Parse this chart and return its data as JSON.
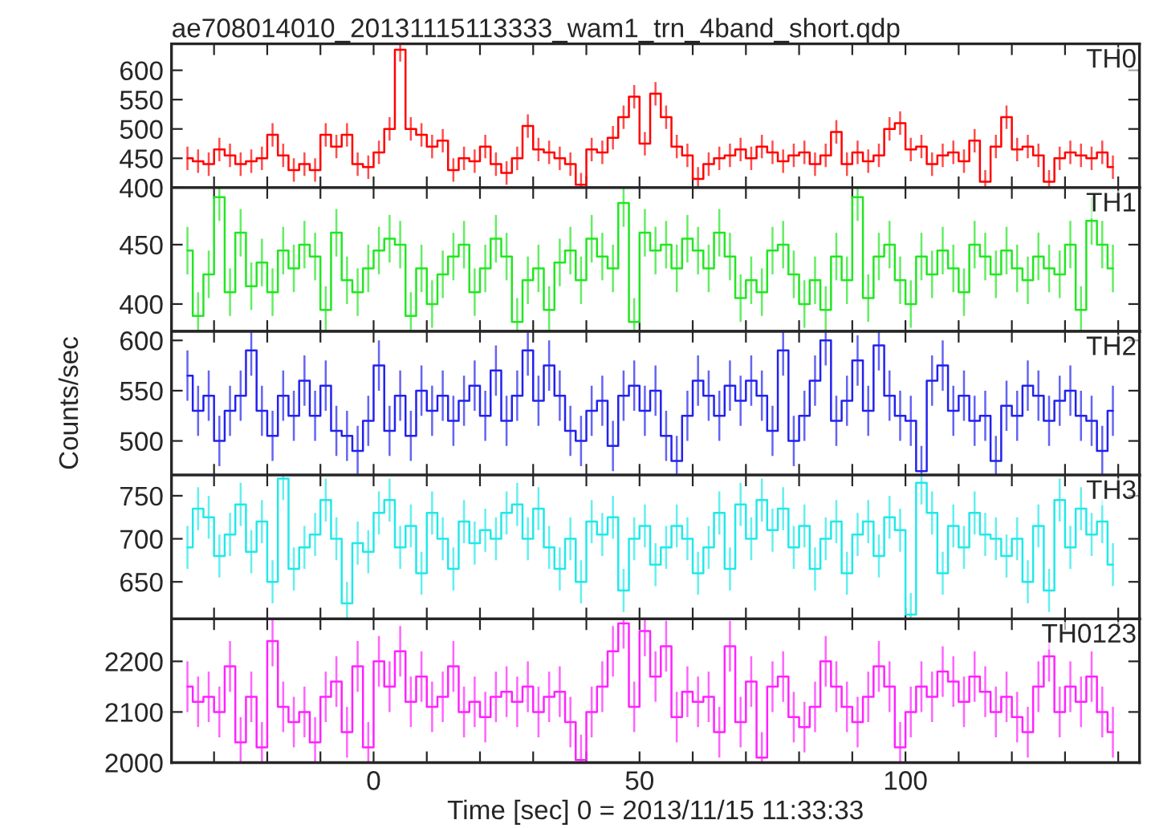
{
  "chart_data": [
    {
      "type": "step",
      "title": "ae708014010_20131115113333_wam1_trn_4band_short.qdp",
      "annotations": [
        "TH0"
      ],
      "tick_labels": "y",
      "color": "#ff0000",
      "x": [
        -35,
        -33,
        -31,
        -29,
        -27,
        -25,
        -23,
        -21,
        -19,
        -17,
        -15,
        -13,
        -11,
        -9,
        -7,
        -5,
        -3,
        -1,
        1,
        3,
        5,
        7,
        9,
        11,
        13,
        15,
        17,
        19,
        21,
        23,
        25,
        27,
        29,
        31,
        33,
        35,
        37,
        39,
        41,
        43,
        45,
        47,
        49,
        51,
        53,
        55,
        57,
        59,
        61,
        63,
        65,
        67,
        69,
        71,
        73,
        75,
        77,
        79,
        81,
        83,
        85,
        87,
        89,
        91,
        93,
        95,
        97,
        99,
        101,
        103,
        105,
        107,
        109,
        111,
        113,
        115,
        117,
        119,
        121,
        123,
        125,
        127,
        129,
        131,
        133,
        135,
        137,
        139
      ],
      "values": [
        450,
        445,
        440,
        465,
        455,
        440,
        445,
        450,
        490,
        455,
        430,
        440,
        430,
        490,
        470,
        490,
        440,
        435,
        460,
        500,
        635,
        500,
        490,
        470,
        480,
        430,
        450,
        445,
        470,
        440,
        425,
        450,
        505,
        465,
        460,
        450,
        440,
        405,
        465,
        460,
        485,
        520,
        555,
        475,
        560,
        520,
        470,
        455,
        415,
        440,
        450,
        455,
        465,
        450,
        470,
        460,
        445,
        455,
        460,
        440,
        455,
        495,
        440,
        460,
        445,
        455,
        500,
        510,
        465,
        470,
        440,
        455,
        460,
        445,
        480,
        410,
        470,
        520,
        465,
        470,
        455,
        410,
        450,
        460,
        455,
        450,
        460,
        435
      ],
      "errors": [
        20,
        20,
        20,
        20,
        20,
        20,
        20,
        20,
        20,
        20,
        20,
        20,
        20,
        20,
        20,
        20,
        20,
        20,
        20,
        20,
        20,
        20,
        20,
        20,
        20,
        20,
        20,
        20,
        20,
        20,
        20,
        20,
        20,
        20,
        20,
        20,
        20,
        20,
        20,
        20,
        20,
        20,
        20,
        20,
        20,
        20,
        20,
        20,
        20,
        20,
        20,
        20,
        20,
        20,
        20,
        20,
        20,
        20,
        20,
        20,
        20,
        20,
        20,
        20,
        20,
        20,
        20,
        20,
        20,
        20,
        20,
        20,
        20,
        20,
        20,
        20,
        20,
        20,
        20,
        20,
        20,
        20,
        20,
        20,
        20,
        20,
        20,
        20
      ],
      "xlim": [
        -38,
        144
      ],
      "ylim": [
        400,
        645
      ],
      "yticks": [
        400,
        450,
        500,
        550,
        600
      ],
      "xticks": [
        {
          "value": -30,
          "label": null
        },
        {
          "value": -20,
          "label": null
        },
        {
          "value": -10,
          "label": null
        },
        {
          "value": 0,
          "label": null
        },
        {
          "value": 10,
          "label": null
        },
        {
          "value": 20,
          "label": null
        },
        {
          "value": 30,
          "label": null
        },
        {
          "value": 40,
          "label": null
        },
        {
          "value": 50,
          "label": null
        },
        {
          "value": 60,
          "label": null
        },
        {
          "value": 70,
          "label": null
        },
        {
          "value": 80,
          "label": null
        },
        {
          "value": 90,
          "label": null
        },
        {
          "value": 100,
          "label": null
        },
        {
          "value": 110,
          "label": null
        },
        {
          "value": 120,
          "label": null
        },
        {
          "value": 130,
          "label": null
        },
        {
          "value": 140,
          "label": null
        }
      ]
    },
    {
      "type": "step",
      "annotations": [
        "TH1"
      ],
      "tick_labels": "y",
      "color": "#22e622",
      "x": [
        -35,
        -33,
        -31,
        -29,
        -27,
        -25,
        -23,
        -21,
        -19,
        -17,
        -15,
        -13,
        -11,
        -9,
        -7,
        -5,
        -3,
        -1,
        1,
        3,
        5,
        7,
        9,
        11,
        13,
        15,
        17,
        19,
        21,
        23,
        25,
        27,
        29,
        31,
        33,
        35,
        37,
        39,
        41,
        43,
        45,
        47,
        49,
        51,
        53,
        55,
        57,
        59,
        61,
        63,
        65,
        67,
        69,
        71,
        73,
        75,
        77,
        79,
        81,
        83,
        85,
        87,
        89,
        91,
        93,
        95,
        97,
        99,
        101,
        103,
        105,
        107,
        109,
        111,
        113,
        115,
        117,
        119,
        121,
        123,
        125,
        127,
        129,
        131,
        133,
        135,
        137,
        139
      ],
      "values": [
        445,
        390,
        425,
        490,
        410,
        460,
        415,
        435,
        410,
        445,
        430,
        450,
        440,
        395,
        460,
        420,
        410,
        430,
        445,
        455,
        450,
        390,
        430,
        400,
        425,
        440,
        450,
        410,
        430,
        455,
        440,
        385,
        420,
        430,
        395,
        435,
        445,
        420,
        455,
        440,
        430,
        485,
        385,
        460,
        445,
        450,
        430,
        455,
        445,
        430,
        460,
        440,
        405,
        420,
        410,
        445,
        450,
        425,
        400,
        420,
        395,
        440,
        420,
        490,
        405,
        440,
        450,
        420,
        400,
        440,
        425,
        445,
        430,
        410,
        450,
        440,
        425,
        445,
        430,
        420,
        440,
        430,
        425,
        450,
        395,
        470,
        450,
        430
      ],
      "errors": [
        20,
        20,
        20,
        20,
        20,
        20,
        20,
        20,
        20,
        20,
        20,
        20,
        20,
        20,
        20,
        20,
        20,
        20,
        20,
        20,
        20,
        20,
        20,
        20,
        20,
        20,
        20,
        20,
        20,
        20,
        20,
        20,
        20,
        20,
        20,
        20,
        20,
        20,
        20,
        20,
        20,
        20,
        20,
        20,
        20,
        20,
        20,
        20,
        20,
        20,
        20,
        20,
        20,
        20,
        20,
        20,
        20,
        20,
        20,
        20,
        20,
        20,
        20,
        20,
        20,
        20,
        20,
        20,
        20,
        20,
        20,
        20,
        20,
        20,
        20,
        20,
        20,
        20,
        20,
        20,
        20,
        20,
        20,
        20,
        20,
        20,
        20,
        20
      ],
      "xlim": [
        -38,
        144
      ],
      "ylim": [
        377,
        498
      ],
      "yticks": [
        400,
        450
      ],
      "xticks": [
        {
          "value": -30,
          "label": null
        },
        {
          "value": -20,
          "label": null
        },
        {
          "value": -10,
          "label": null
        },
        {
          "value": 0,
          "label": null
        },
        {
          "value": 10,
          "label": null
        },
        {
          "value": 20,
          "label": null
        },
        {
          "value": 30,
          "label": null
        },
        {
          "value": 40,
          "label": null
        },
        {
          "value": 50,
          "label": null
        },
        {
          "value": 60,
          "label": null
        },
        {
          "value": 70,
          "label": null
        },
        {
          "value": 80,
          "label": null
        },
        {
          "value": 90,
          "label": null
        },
        {
          "value": 100,
          "label": null
        },
        {
          "value": 110,
          "label": null
        },
        {
          "value": 120,
          "label": null
        },
        {
          "value": 130,
          "label": null
        },
        {
          "value": 140,
          "label": null
        }
      ]
    },
    {
      "type": "step",
      "annotations": [
        "TH2"
      ],
      "ylabel": "Counts/sec",
      "tick_labels": "y",
      "color": "#2222ee",
      "x": [
        -35,
        -33,
        -31,
        -29,
        -27,
        -25,
        -23,
        -21,
        -19,
        -17,
        -15,
        -13,
        -11,
        -9,
        -7,
        -5,
        -3,
        -1,
        1,
        3,
        5,
        7,
        9,
        11,
        13,
        15,
        17,
        19,
        21,
        23,
        25,
        27,
        29,
        31,
        33,
        35,
        37,
        39,
        41,
        43,
        45,
        47,
        49,
        51,
        53,
        55,
        57,
        59,
        61,
        63,
        65,
        67,
        69,
        71,
        73,
        75,
        77,
        79,
        81,
        83,
        85,
        87,
        89,
        91,
        93,
        95,
        97,
        99,
        101,
        103,
        105,
        107,
        109,
        111,
        113,
        115,
        117,
        119,
        121,
        123,
        125,
        127,
        129,
        131,
        133,
        135,
        137,
        139
      ],
      "values": [
        565,
        530,
        545,
        500,
        530,
        545,
        590,
        530,
        505,
        545,
        525,
        560,
        525,
        555,
        510,
        505,
        490,
        520,
        575,
        510,
        545,
        505,
        550,
        530,
        545,
        520,
        540,
        555,
        525,
        570,
        520,
        545,
        590,
        540,
        575,
        545,
        510,
        500,
        530,
        540,
        495,
        545,
        555,
        530,
        550,
        505,
        480,
        525,
        560,
        545,
        525,
        555,
        540,
        560,
        545,
        510,
        590,
        500,
        525,
        560,
        600,
        520,
        540,
        580,
        530,
        595,
        545,
        525,
        520,
        470,
        560,
        575,
        530,
        545,
        520,
        525,
        480,
        535,
        525,
        555,
        545,
        520,
        540,
        550,
        525,
        520,
        490,
        530
      ],
      "errors": [
        25,
        25,
        25,
        25,
        25,
        25,
        25,
        25,
        25,
        25,
        25,
        25,
        25,
        25,
        25,
        25,
        25,
        25,
        25,
        25,
        25,
        25,
        25,
        25,
        25,
        25,
        25,
        25,
        25,
        25,
        25,
        25,
        25,
        25,
        25,
        25,
        25,
        25,
        25,
        25,
        25,
        25,
        25,
        25,
        25,
        25,
        25,
        25,
        25,
        25,
        25,
        25,
        25,
        25,
        25,
        25,
        25,
        25,
        25,
        25,
        25,
        25,
        25,
        25,
        25,
        25,
        25,
        25,
        25,
        25,
        25,
        25,
        25,
        25,
        25,
        25,
        25,
        25,
        25,
        25,
        25,
        25,
        25,
        25,
        25,
        25,
        25,
        25
      ],
      "xlim": [
        -38,
        144
      ],
      "ylim": [
        466,
        609
      ],
      "yticks": [
        500,
        550,
        600
      ],
      "xticks": [
        {
          "value": -30,
          "label": null
        },
        {
          "value": -20,
          "label": null
        },
        {
          "value": -10,
          "label": null
        },
        {
          "value": 0,
          "label": null
        },
        {
          "value": 10,
          "label": null
        },
        {
          "value": 20,
          "label": null
        },
        {
          "value": 30,
          "label": null
        },
        {
          "value": 40,
          "label": null
        },
        {
          "value": 50,
          "label": null
        },
        {
          "value": 60,
          "label": null
        },
        {
          "value": 70,
          "label": null
        },
        {
          "value": 80,
          "label": null
        },
        {
          "value": 90,
          "label": null
        },
        {
          "value": 100,
          "label": null
        },
        {
          "value": 110,
          "label": null
        },
        {
          "value": 120,
          "label": null
        },
        {
          "value": 130,
          "label": null
        },
        {
          "value": 140,
          "label": null
        }
      ]
    },
    {
      "type": "step",
      "annotations": [
        "TH3"
      ],
      "tick_labels": "y",
      "color": "#22e8e8",
      "x": [
        -35,
        -33,
        -31,
        -29,
        -27,
        -25,
        -23,
        -21,
        -19,
        -17,
        -15,
        -13,
        -11,
        -9,
        -7,
        -5,
        -3,
        -1,
        1,
        3,
        5,
        7,
        9,
        11,
        13,
        15,
        17,
        19,
        21,
        23,
        25,
        27,
        29,
        31,
        33,
        35,
        37,
        39,
        41,
        43,
        45,
        47,
        49,
        51,
        53,
        55,
        57,
        59,
        61,
        63,
        65,
        67,
        69,
        71,
        73,
        75,
        77,
        79,
        81,
        83,
        85,
        87,
        89,
        91,
        93,
        95,
        97,
        99,
        101,
        103,
        105,
        107,
        109,
        111,
        113,
        115,
        117,
        119,
        121,
        123,
        125,
        127,
        129,
        131,
        133,
        135,
        137,
        139
      ],
      "values": [
        690,
        735,
        725,
        680,
        705,
        740,
        685,
        720,
        650,
        770,
        665,
        690,
        705,
        745,
        700,
        625,
        695,
        685,
        730,
        745,
        690,
        715,
        660,
        730,
        700,
        665,
        720,
        695,
        710,
        700,
        730,
        740,
        700,
        735,
        690,
        665,
        700,
        650,
        720,
        705,
        725,
        640,
        700,
        715,
        670,
        690,
        715,
        700,
        660,
        690,
        730,
        665,
        740,
        700,
        745,
        710,
        735,
        690,
        715,
        665,
        700,
        720,
        660,
        705,
        720,
        680,
        725,
        710,
        612,
        765,
        730,
        660,
        715,
        690,
        730,
        705,
        700,
        680,
        700,
        650,
        715,
        640,
        745,
        690,
        735,
        705,
        720,
        670
      ],
      "errors": [
        25,
        25,
        25,
        25,
        25,
        25,
        25,
        25,
        25,
        25,
        25,
        25,
        25,
        25,
        25,
        25,
        25,
        25,
        25,
        25,
        25,
        25,
        25,
        25,
        25,
        25,
        25,
        25,
        25,
        25,
        25,
        25,
        25,
        25,
        25,
        25,
        25,
        25,
        25,
        25,
        25,
        25,
        25,
        25,
        25,
        25,
        25,
        25,
        25,
        25,
        25,
        25,
        25,
        25,
        25,
        25,
        25,
        25,
        25,
        25,
        25,
        25,
        25,
        25,
        25,
        25,
        25,
        25,
        25,
        25,
        25,
        25,
        25,
        25,
        25,
        25,
        25,
        25,
        25,
        25,
        25,
        25,
        25,
        25,
        25,
        25,
        25,
        25
      ],
      "xlim": [
        -38,
        144
      ],
      "ylim": [
        607,
        774
      ],
      "yticks": [
        650,
        700,
        750
      ],
      "xticks": [
        {
          "value": -30,
          "label": null
        },
        {
          "value": -20,
          "label": null
        },
        {
          "value": -10,
          "label": null
        },
        {
          "value": 0,
          "label": null
        },
        {
          "value": 10,
          "label": null
        },
        {
          "value": 20,
          "label": null
        },
        {
          "value": 30,
          "label": null
        },
        {
          "value": 40,
          "label": null
        },
        {
          "value": 50,
          "label": null
        },
        {
          "value": 60,
          "label": null
        },
        {
          "value": 70,
          "label": null
        },
        {
          "value": 80,
          "label": null
        },
        {
          "value": 90,
          "label": null
        },
        {
          "value": 100,
          "label": null
        },
        {
          "value": 110,
          "label": null
        },
        {
          "value": 120,
          "label": null
        },
        {
          "value": 130,
          "label": null
        },
        {
          "value": 140,
          "label": null
        }
      ]
    },
    {
      "type": "step",
      "annotations": [
        "TH0123"
      ],
      "xlabel": "Time [sec] 0 = 2013/11/15 11:33:33",
      "color": "#ff22ff",
      "x": [
        -35,
        -33,
        -31,
        -29,
        -27,
        -25,
        -23,
        -21,
        -19,
        -17,
        -15,
        -13,
        -11,
        -9,
        -7,
        -5,
        -3,
        -1,
        1,
        3,
        5,
        7,
        9,
        11,
        13,
        15,
        17,
        19,
        21,
        23,
        25,
        27,
        29,
        31,
        33,
        35,
        37,
        39,
        41,
        43,
        45,
        47,
        49,
        51,
        53,
        55,
        57,
        59,
        61,
        63,
        65,
        67,
        69,
        71,
        73,
        75,
        77,
        79,
        81,
        83,
        85,
        87,
        89,
        91,
        93,
        95,
        97,
        99,
        101,
        103,
        105,
        107,
        109,
        111,
        113,
        115,
        117,
        119,
        121,
        123,
        125,
        127,
        129,
        131,
        133,
        135,
        137,
        139
      ],
      "values": [
        2150,
        2120,
        2130,
        2100,
        2190,
        2040,
        2130,
        2030,
        2240,
        2110,
        2080,
        2100,
        2040,
        2130,
        2160,
        2060,
        2190,
        2030,
        2200,
        2150,
        2220,
        2120,
        2170,
        2110,
        2130,
        2190,
        2100,
        2120,
        2090,
        2130,
        2140,
        2120,
        2150,
        2100,
        2130,
        2140,
        2080,
        2005,
        2100,
        2150,
        2220,
        2275,
        2110,
        2260,
        2170,
        2230,
        2090,
        2140,
        2120,
        2130,
        2060,
        2230,
        2080,
        2160,
        2010,
        2150,
        2170,
        2090,
        2070,
        2110,
        2200,
        2150,
        2110,
        2080,
        2130,
        2190,
        2150,
        2030,
        2100,
        2150,
        2130,
        2180,
        2160,
        2120,
        2170,
        2140,
        2100,
        2130,
        2090,
        2060,
        2150,
        2210,
        2100,
        2150,
        2120,
        2170,
        2100,
        2060
      ],
      "errors": [
        50,
        50,
        50,
        50,
        50,
        50,
        50,
        50,
        50,
        50,
        50,
        50,
        50,
        50,
        50,
        50,
        50,
        50,
        50,
        50,
        50,
        50,
        50,
        50,
        50,
        50,
        50,
        50,
        50,
        50,
        50,
        50,
        50,
        50,
        50,
        50,
        50,
        50,
        50,
        50,
        50,
        50,
        50,
        50,
        50,
        50,
        50,
        50,
        50,
        50,
        50,
        50,
        50,
        50,
        50,
        50,
        50,
        50,
        50,
        50,
        50,
        50,
        50,
        50,
        50,
        50,
        50,
        50,
        50,
        50,
        50,
        50,
        50,
        50,
        50,
        50,
        50,
        50,
        50,
        50,
        50,
        50,
        50,
        50,
        50,
        50,
        50,
        50
      ],
      "xlim": [
        -38,
        144
      ],
      "ylim": [
        2000,
        2284
      ],
      "yticks": [
        2000,
        2100,
        2200
      ],
      "xticks": [
        {
          "value": -30,
          "label": null
        },
        {
          "value": -20,
          "label": null
        },
        {
          "value": -10,
          "label": null
        },
        {
          "value": 0,
          "label": "0"
        },
        {
          "value": 10,
          "label": null
        },
        {
          "value": 20,
          "label": null
        },
        {
          "value": 30,
          "label": null
        },
        {
          "value": 40,
          "label": null
        },
        {
          "value": 50,
          "label": "50"
        },
        {
          "value": 60,
          "label": null
        },
        {
          "value": 70,
          "label": null
        },
        {
          "value": 80,
          "label": null
        },
        {
          "value": 90,
          "label": null
        },
        {
          "value": 100,
          "label": "100"
        },
        {
          "value": 110,
          "label": null
        },
        {
          "value": 120,
          "label": null
        },
        {
          "value": 130,
          "label": null
        },
        {
          "value": 140,
          "label": null
        }
      ]
    }
  ]
}
